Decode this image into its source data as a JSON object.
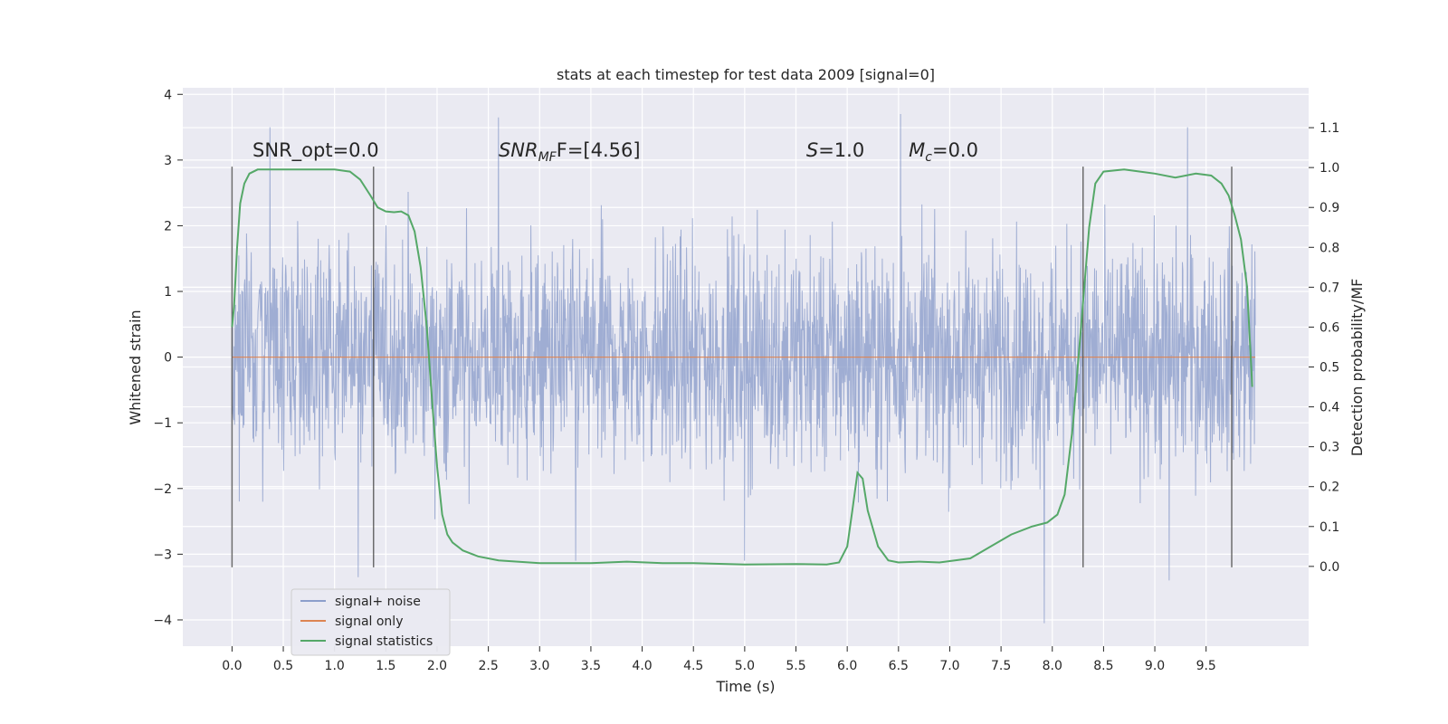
{
  "chart_data": {
    "type": "line",
    "title": "stats at each timestep for test data 2009 [signal=0]",
    "xlabel": "Time (s)",
    "ylabel_left": "Whitened strain",
    "ylabel_right": "Detection probability/MF",
    "xlim": [
      -0.48,
      10.5
    ],
    "ylim_left": [
      -4.4,
      4.1
    ],
    "ylim_right": [
      -0.2,
      1.2
    ],
    "x_ticks": [
      "0.0",
      "0.5",
      "1.0",
      "1.5",
      "2.0",
      "2.5",
      "3.0",
      "3.5",
      "4.0",
      "4.5",
      "5.0",
      "5.5",
      "6.0",
      "6.5",
      "7.0",
      "7.5",
      "8.0",
      "8.5",
      "9.0",
      "9.5"
    ],
    "y_ticks_left": [
      "−4",
      "−3",
      "−2",
      "−1",
      "0",
      "1",
      "2",
      "3",
      "4"
    ],
    "y_ticks_right": [
      "0.0",
      "0.1",
      "0.2",
      "0.3",
      "0.4",
      "0.5",
      "0.6",
      "0.7",
      "0.8",
      "0.9",
      "1.0",
      "1.1"
    ],
    "grid": true,
    "legend_position": "lower-left",
    "series": [
      {
        "name": "signal+ noise",
        "color": "#8c9ecb",
        "axis": "left",
        "x_range": [
          0.0,
          9.98
        ],
        "typical_range": [
          -2.0,
          2.0
        ],
        "extremes_x": [
          0.37,
          1.23,
          2.6,
          3.35,
          5.0,
          6.52,
          7.92,
          9.14,
          9.32
        ],
        "extremes_y": [
          3.5,
          -3.35,
          3.65,
          -3.1,
          -3.1,
          3.7,
          -4.05,
          -3.4,
          3.5
        ]
      },
      {
        "name": "signal only",
        "color": "#dd8452",
        "axis": "left",
        "x": [
          0.0,
          9.98
        ],
        "y": [
          0.0,
          0.0
        ]
      },
      {
        "name": "signal statistics",
        "color": "#55a868",
        "axis": "right",
        "x": [
          0.0,
          0.02,
          0.05,
          0.08,
          0.12,
          0.17,
          0.25,
          0.4,
          0.6,
          0.8,
          1.0,
          1.15,
          1.25,
          1.35,
          1.42,
          1.5,
          1.58,
          1.65,
          1.72,
          1.78,
          1.84,
          1.9,
          1.95,
          2.0,
          2.05,
          2.1,
          2.15,
          2.25,
          2.4,
          2.6,
          3.0,
          3.5,
          3.85,
          4.2,
          4.5,
          5.0,
          5.5,
          5.8,
          5.92,
          6.0,
          6.05,
          6.1,
          6.15,
          6.2,
          6.3,
          6.4,
          6.5,
          6.7,
          6.9,
          7.2,
          7.4,
          7.6,
          7.8,
          7.95,
          8.05,
          8.12,
          8.2,
          8.28,
          8.36,
          8.42,
          8.5,
          8.7,
          9.0,
          9.2,
          9.4,
          9.55,
          9.65,
          9.72,
          9.78,
          9.84,
          9.9,
          9.95
        ],
        "y": [
          0.6,
          0.65,
          0.8,
          0.91,
          0.96,
          0.985,
          0.995,
          0.995,
          0.995,
          0.995,
          0.995,
          0.99,
          0.97,
          0.93,
          0.9,
          0.89,
          0.888,
          0.89,
          0.88,
          0.84,
          0.75,
          0.6,
          0.42,
          0.25,
          0.13,
          0.08,
          0.06,
          0.04,
          0.025,
          0.015,
          0.008,
          0.008,
          0.012,
          0.008,
          0.008,
          0.005,
          0.006,
          0.005,
          0.01,
          0.05,
          0.14,
          0.235,
          0.22,
          0.14,
          0.05,
          0.015,
          0.01,
          0.012,
          0.01,
          0.02,
          0.05,
          0.08,
          0.1,
          0.11,
          0.13,
          0.18,
          0.35,
          0.6,
          0.85,
          0.96,
          0.99,
          0.995,
          0.985,
          0.975,
          0.985,
          0.98,
          0.96,
          0.93,
          0.88,
          0.82,
          0.7,
          0.45
        ]
      }
    ],
    "vertical_lines": [
      0.0,
      1.38,
      8.3,
      9.75
    ],
    "vertical_lines_y_range": [
      -3.2,
      2.9
    ],
    "annotations": [
      {
        "x": 0.2,
        "y": 3.05,
        "text": "SNR_opt=0.0",
        "style": "plain"
      },
      {
        "x": 2.6,
        "y": 3.05,
        "text_main": "SNR",
        "text_sub": "MF",
        "text_rest": "F=[4.56]",
        "style": "math"
      },
      {
        "x": 5.6,
        "y": 3.05,
        "text_main": "S",
        "text_rest": "=1.0",
        "style": "math"
      },
      {
        "x": 6.6,
        "y": 3.05,
        "text_main": "M",
        "text_sub": "c",
        "text_rest": "=0.0",
        "style": "math"
      }
    ]
  }
}
